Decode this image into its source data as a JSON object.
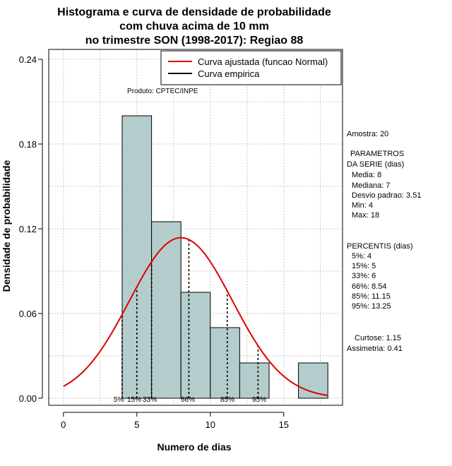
{
  "chart_data": {
    "type": "bar",
    "title_lines": [
      "Histograma e curva de densidade de probabilidade",
      "com chuva acima de 10 mm",
      "no trimestre SON (1998-2017): Regiao 88"
    ],
    "xlabel": "Numero de dias",
    "ylabel": "Densidade de probabilidade",
    "xlim": [
      -1,
      19
    ],
    "ylim": [
      -0.005,
      0.247
    ],
    "xticks": [
      0,
      5,
      10,
      15
    ],
    "yticks": [
      0.0,
      0.06,
      0.12,
      0.18,
      0.24
    ],
    "ytick_labels": [
      "0.00",
      "0.06",
      "0.12",
      "0.18",
      "0.24"
    ],
    "grid": true,
    "bar_color": "#b5cccc",
    "bins": [
      {
        "start": 4,
        "end": 6,
        "density": 0.2
      },
      {
        "start": 6,
        "end": 8,
        "density": 0.125
      },
      {
        "start": 8,
        "end": 10,
        "density": 0.075
      },
      {
        "start": 10,
        "end": 12,
        "density": 0.05
      },
      {
        "start": 12,
        "end": 14,
        "density": 0.025
      },
      {
        "start": 14,
        "end": 16,
        "density": 0.0
      },
      {
        "start": 16,
        "end": 18,
        "density": 0.025
      }
    ],
    "normal_fit": {
      "name": "Curva ajustada (funcao Normal)",
      "mean": 8,
      "sd": 3.51,
      "x_range": [
        0,
        18
      ],
      "color": "#dd0000"
    },
    "empirical": {
      "name": "Curva empirica",
      "color": "#000000"
    },
    "legend_position": "top-right",
    "percentile_lines": [
      {
        "label": "5%",
        "x": 4
      },
      {
        "label": "15%",
        "x": 5
      },
      {
        "label": "33%",
        "x": 6
      },
      {
        "label": "66%",
        "x": 8.54
      },
      {
        "label": "85%",
        "x": 11.15
      },
      {
        "label": "95%",
        "x": 13.25
      }
    ],
    "product_note": "Produto: CPTEC/INPE"
  },
  "stats_panel": {
    "sample": "Amostra: 20",
    "params_title_1": "PARAMETROS",
    "params_title_2": "DA SERIE (dias)",
    "media": "Media: 8",
    "mediana": "Mediana: 7",
    "desvio": "Desvio padrao: 3.51",
    "min": "Min: 4",
    "max": "Max: 18",
    "percentis_title": "PERCENTIS (dias)",
    "p5": "5%: 4",
    "p15": "15%: 5",
    "p33": "33%: 6",
    "p66": "66%: 8.54",
    "p85": "85%: 11.15",
    "p95": "95%: 13.25",
    "curtose": "Curtose: 1.15",
    "assimetria": "Assimetria: 0.41"
  }
}
